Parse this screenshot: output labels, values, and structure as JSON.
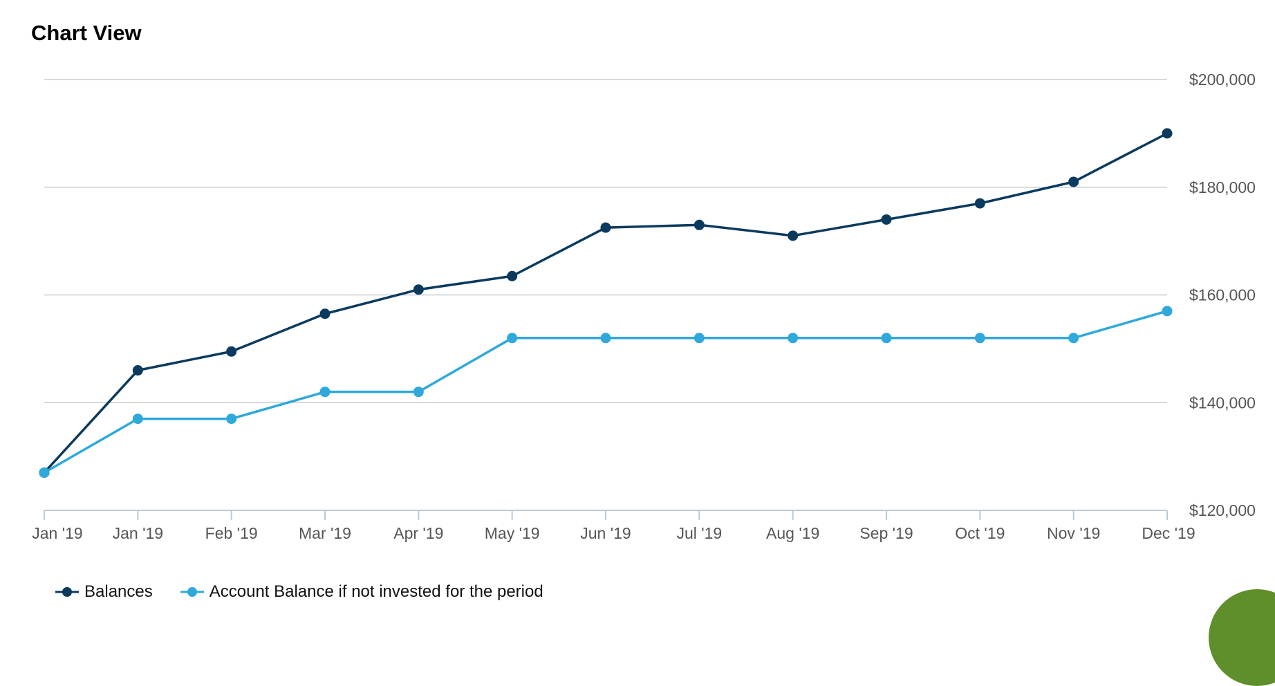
{
  "page": {
    "title": "Chart View"
  },
  "colors": {
    "balances": "#0b3a5e",
    "not_invested": "#2fa8dc",
    "grid": "#c8cdd2",
    "axis": "#b9cbd8",
    "tick_text": "#555555",
    "corner_accent": "#5f8f2a"
  },
  "chart_data": {
    "type": "line",
    "categories": [
      "Jan '19",
      "Jan '19",
      "Feb '19",
      "Mar '19",
      "Apr '19",
      "May '19",
      "Jun '19",
      "Jul '19",
      "Aug '19",
      "Sep '19",
      "Oct '19",
      "Nov '19",
      "Dec '19"
    ],
    "series": [
      {
        "name": "Balances",
        "color": "#0b3a5e",
        "values": [
          127000,
          146000,
          149500,
          156500,
          161000,
          163500,
          172500,
          173000,
          171000,
          174000,
          177000,
          181000,
          190000
        ]
      },
      {
        "name": "Account Balance if not invested for the period",
        "color": "#2fa8dc",
        "values": [
          127000,
          137000,
          137000,
          142000,
          142000,
          152000,
          152000,
          152000,
          152000,
          152000,
          152000,
          152000,
          157000
        ]
      }
    ],
    "ylim": [
      120000,
      200000
    ],
    "yticks": [
      120000,
      140000,
      160000,
      180000,
      200000
    ],
    "ytick_labels": [
      "$120,000",
      "$140,000",
      "$160,000",
      "$180,000",
      "$200,000"
    ],
    "y_axis_side": "right",
    "grid": true,
    "legend": "bottom-left",
    "title": "",
    "xlabel": "",
    "ylabel": ""
  }
}
